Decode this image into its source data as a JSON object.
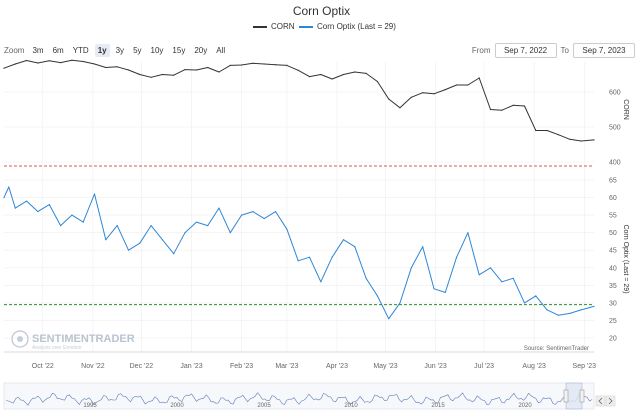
{
  "title": "Corn Optix",
  "legend": [
    {
      "label": "CORN",
      "color": "#333333"
    },
    {
      "label": "Corn Optix (Last = 29)",
      "color": "#2f86d6"
    }
  ],
  "zoom": {
    "label": "Zoom",
    "buttons": [
      "3m",
      "6m",
      "YTD",
      "1y",
      "3y",
      "5y",
      "10y",
      "15y",
      "20y",
      "All"
    ],
    "active": "1y"
  },
  "range": {
    "from_label": "From",
    "from_value": "Sep 7, 2022",
    "to_label": "To",
    "to_value": "Sep 7, 2023"
  },
  "source": "Source: SentimenTrader",
  "watermark": {
    "brand": "SENTIMENTRADER",
    "tagline": "Analysis over Emotion"
  },
  "navigator_years": [
    "1995",
    "2000",
    "2005",
    "2010",
    "2015",
    "2020"
  ],
  "colors": {
    "corn": "#333333",
    "optix": "#2f86d6",
    "upper_ref": "#e05555",
    "lower_ref": "#2e8b2e",
    "navigator_fill": "#dfe6f2",
    "navigator_line": "#5b7fb5"
  },
  "chart_data": {
    "type": "line",
    "x_range": [
      "2022-09-07",
      "2023-09-07"
    ],
    "x_ticks": [
      "Oct '22",
      "Nov '22",
      "Dec '22",
      "Jan '23",
      "Feb '23",
      "Mar '23",
      "Apr '23",
      "May '23",
      "Jun '23",
      "Jul '23",
      "Aug '23",
      "Sep '23"
    ],
    "panels": [
      {
        "name": "CORN",
        "axis_title": "CORN",
        "ylim": [
          400,
          700
        ],
        "y_ticks": [
          400,
          500,
          600
        ],
        "series": {
          "name": "CORN",
          "x": [
            "2022-09-07",
            "2022-09-14",
            "2022-09-21",
            "2022-09-28",
            "2022-10-05",
            "2022-10-12",
            "2022-10-19",
            "2022-10-26",
            "2022-11-02",
            "2022-11-09",
            "2022-11-16",
            "2022-11-23",
            "2022-11-30",
            "2022-12-07",
            "2022-12-14",
            "2022-12-21",
            "2022-12-28",
            "2023-01-04",
            "2023-01-11",
            "2023-01-18",
            "2023-01-25",
            "2023-02-01",
            "2023-02-08",
            "2023-02-15",
            "2023-02-22",
            "2023-03-01",
            "2023-03-08",
            "2023-03-15",
            "2023-03-22",
            "2023-03-29",
            "2023-04-05",
            "2023-04-12",
            "2023-04-19",
            "2023-04-26",
            "2023-05-03",
            "2023-05-10",
            "2023-05-17",
            "2023-05-24",
            "2023-05-31",
            "2023-06-07",
            "2023-06-14",
            "2023-06-21",
            "2023-06-28",
            "2023-07-05",
            "2023-07-12",
            "2023-07-19",
            "2023-07-26",
            "2023-08-02",
            "2023-08-09",
            "2023-08-16",
            "2023-08-23",
            "2023-08-30",
            "2023-09-07"
          ],
          "values": [
            668,
            680,
            690,
            683,
            689,
            684,
            691,
            687,
            680,
            670,
            672,
            663,
            650,
            642,
            650,
            648,
            664,
            663,
            670,
            657,
            676,
            677,
            682,
            680,
            678,
            676,
            662,
            644,
            650,
            637,
            650,
            657,
            653,
            630,
            580,
            555,
            585,
            598,
            595,
            607,
            620,
            620,
            640,
            550,
            548,
            562,
            560,
            490,
            490,
            478,
            465,
            460,
            463
          ]
        }
      },
      {
        "name": "Corn Optix",
        "axis_title": "Corn Optix (Last = 29)",
        "ylim": [
          20,
          65
        ],
        "y_ticks": [
          20,
          25,
          30,
          35,
          40,
          45,
          50,
          55,
          60,
          65
        ],
        "reference_lines": [
          29.5
        ],
        "series": {
          "name": "Corn Optix",
          "x": [
            "2022-09-07",
            "2022-09-10",
            "2022-09-14",
            "2022-09-21",
            "2022-09-28",
            "2022-10-05",
            "2022-10-12",
            "2022-10-19",
            "2022-10-26",
            "2022-11-02",
            "2022-11-09",
            "2022-11-16",
            "2022-11-23",
            "2022-11-30",
            "2022-12-07",
            "2022-12-14",
            "2022-12-21",
            "2022-12-28",
            "2023-01-04",
            "2023-01-11",
            "2023-01-18",
            "2023-01-25",
            "2023-02-01",
            "2023-02-08",
            "2023-02-15",
            "2023-02-22",
            "2023-03-01",
            "2023-03-08",
            "2023-03-15",
            "2023-03-22",
            "2023-03-29",
            "2023-04-05",
            "2023-04-12",
            "2023-04-19",
            "2023-04-26",
            "2023-05-03",
            "2023-05-10",
            "2023-05-17",
            "2023-05-24",
            "2023-05-31",
            "2023-06-07",
            "2023-06-14",
            "2023-06-21",
            "2023-06-28",
            "2023-07-05",
            "2023-07-12",
            "2023-07-19",
            "2023-07-26",
            "2023-08-02",
            "2023-08-09",
            "2023-08-16",
            "2023-08-23",
            "2023-08-30",
            "2023-09-07"
          ],
          "values": [
            60,
            63,
            57,
            59,
            56,
            58,
            52,
            55,
            53,
            61,
            48,
            52,
            45,
            47,
            52,
            48,
            44,
            50,
            53,
            52,
            57,
            50,
            55,
            56,
            54,
            56,
            51,
            42,
            43,
            36,
            43,
            48,
            46,
            37,
            32,
            25.5,
            30,
            40,
            46,
            34,
            33,
            43,
            50,
            38,
            40,
            36,
            37,
            30,
            32,
            28,
            26.5,
            27,
            28,
            29
          ]
        }
      }
    ]
  }
}
